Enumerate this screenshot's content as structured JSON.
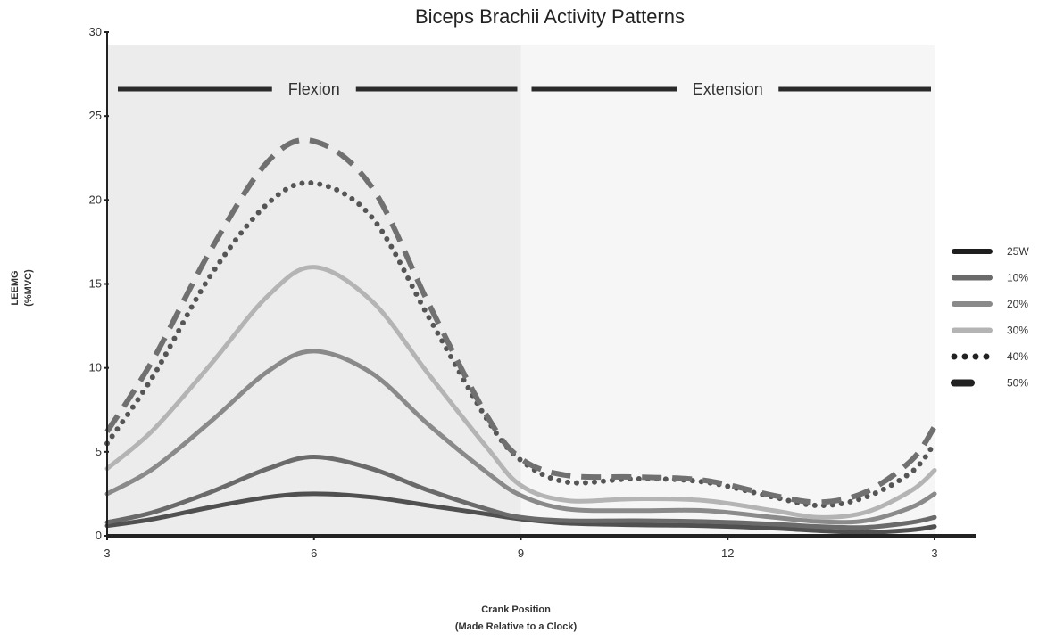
{
  "chart_data": {
    "type": "line",
    "title": "Biceps Brachii Activity Patterns",
    "xlabel": [
      "Crank Position",
      "(Made Relative to a Clock)"
    ],
    "ylabel": [
      "LEEMG",
      "(%MVC)"
    ],
    "x_ticks": [
      "3",
      "6",
      "9",
      "12",
      "3"
    ],
    "y_ticks": [
      "0",
      "5",
      "10",
      "15",
      "20",
      "25",
      "30"
    ],
    "ylim": [
      0,
      30
    ],
    "xlim": [
      0,
      360
    ],
    "phases": [
      {
        "label": "Flexion",
        "from": 0,
        "to": 180,
        "fill": "#ececec"
      },
      {
        "label": "Extension",
        "from": 180,
        "to": 360,
        "fill": "#f6f6f6"
      }
    ],
    "legend_position": "right",
    "series": [
      {
        "name": "25W",
        "color": "#505050",
        "style": "solid",
        "x": [
          0,
          20,
          45,
          70,
          90,
          115,
          140,
          165,
          180,
          200,
          230,
          260,
          290,
          310,
          330,
          350,
          360
        ],
        "y": [
          0.6,
          1.0,
          1.7,
          2.3,
          2.5,
          2.3,
          1.8,
          1.3,
          1.0,
          0.75,
          0.65,
          0.6,
          0.45,
          0.3,
          0.2,
          0.35,
          0.55
        ]
      },
      {
        "name": "10%",
        "color": "#6a6a6a",
        "style": "solid",
        "x": [
          0,
          20,
          45,
          70,
          90,
          115,
          140,
          165,
          180,
          200,
          230,
          260,
          290,
          310,
          330,
          350,
          360
        ],
        "y": [
          0.8,
          1.4,
          2.6,
          4.0,
          4.7,
          4.0,
          2.7,
          1.6,
          1.1,
          0.9,
          0.9,
          0.85,
          0.7,
          0.55,
          0.5,
          0.8,
          1.1
        ]
      },
      {
        "name": "20%",
        "color": "#8a8a8a",
        "style": "solid",
        "x": [
          0,
          20,
          45,
          70,
          90,
          115,
          140,
          165,
          180,
          200,
          230,
          260,
          290,
          310,
          330,
          350,
          360
        ],
        "y": [
          2.5,
          4.0,
          6.8,
          9.8,
          11.0,
          9.7,
          6.6,
          3.8,
          2.4,
          1.6,
          1.5,
          1.5,
          1.1,
          0.85,
          0.9,
          1.7,
          2.5
        ]
      },
      {
        "name": "30%",
        "color": "#b4b4b4",
        "style": "solid",
        "x": [
          0,
          20,
          45,
          70,
          90,
          115,
          140,
          165,
          180,
          200,
          230,
          260,
          290,
          310,
          330,
          350,
          360
        ],
        "y": [
          4.0,
          6.3,
          10.2,
          14.3,
          16.0,
          14.0,
          9.6,
          5.3,
          3.0,
          2.1,
          2.2,
          2.1,
          1.5,
          1.1,
          1.4,
          2.7,
          3.9
        ]
      },
      {
        "name": "40%",
        "color": "#555555",
        "style": "dotted",
        "x": [
          0,
          20,
          45,
          70,
          90,
          115,
          140,
          165,
          180,
          200,
          230,
          260,
          290,
          310,
          330,
          350,
          360
        ],
        "y": [
          5.5,
          9.5,
          15.5,
          19.8,
          21.0,
          19.0,
          13.0,
          7.0,
          4.5,
          3.2,
          3.4,
          3.2,
          2.3,
          1.8,
          2.3,
          3.8,
          5.5
        ]
      },
      {
        "name": "50%",
        "color": "#707070",
        "style": "dashed",
        "x": [
          0,
          20,
          45,
          70,
          90,
          115,
          140,
          165,
          180,
          200,
          230,
          260,
          290,
          310,
          330,
          350,
          360
        ],
        "y": [
          6.2,
          10.5,
          17.0,
          22.3,
          23.5,
          20.8,
          13.8,
          7.2,
          4.6,
          3.6,
          3.5,
          3.3,
          2.4,
          2.0,
          2.6,
          4.5,
          6.5
        ]
      }
    ]
  }
}
